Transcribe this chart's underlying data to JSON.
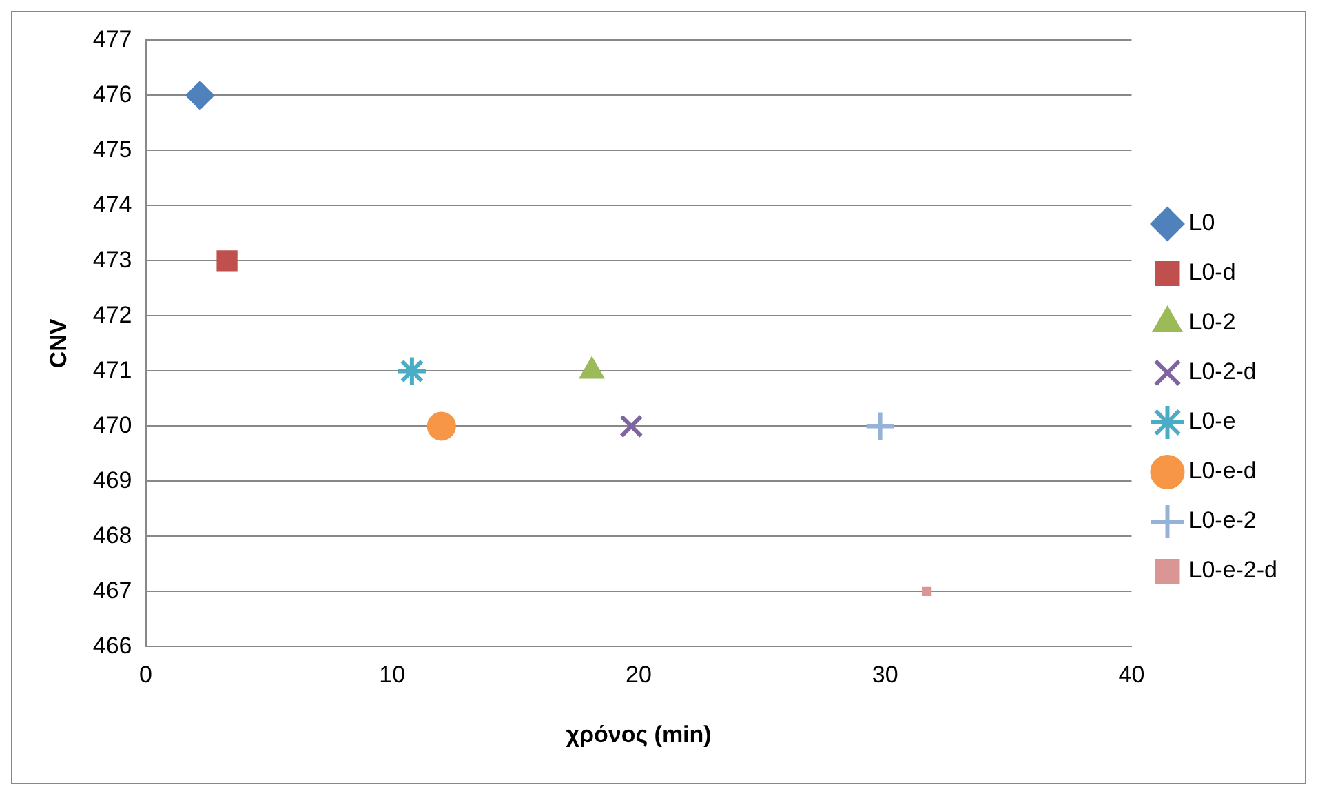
{
  "chart_data": {
    "type": "scatter",
    "xlabel": "χρόνος (min)",
    "ylabel": "CNV",
    "xlim": [
      0,
      40
    ],
    "xticks": [
      0,
      10,
      20,
      30,
      40
    ],
    "ylim": [
      466,
      477
    ],
    "yticks": [
      466,
      467,
      468,
      469,
      470,
      471,
      472,
      473,
      474,
      475,
      476,
      477
    ],
    "grid": "y",
    "legend": "right",
    "series": [
      {
        "name": "L0",
        "color": "#4f81bd",
        "marker": "diamond",
        "x": [
          2.2
        ],
        "values": [
          476
        ]
      },
      {
        "name": "L0-d",
        "color": "#c0504d",
        "marker": "square",
        "x": [
          3.3
        ],
        "values": [
          473
        ]
      },
      {
        "name": "L0-2",
        "color": "#9bbb59",
        "marker": "triangle",
        "x": [
          18.1
        ],
        "values": [
          471
        ]
      },
      {
        "name": "L0-2-d",
        "color": "#8064a2",
        "marker": "cross",
        "x": [
          19.7
        ],
        "values": [
          470
        ]
      },
      {
        "name": "L0-e",
        "color": "#4bacc6",
        "marker": "cross",
        "x": [
          10.8
        ],
        "values": [
          471
        ]
      },
      {
        "name": "L0-e-d",
        "color": "#f79646",
        "marker": "circle",
        "x": [
          12
        ],
        "values": [
          470
        ]
      },
      {
        "name": "L0-e-2",
        "color": "#95b3d7",
        "marker": "cross",
        "x": [
          29.8
        ],
        "values": [
          470
        ]
      },
      {
        "name": "L0-e-2-d",
        "color": "#d99694",
        "marker": "square",
        "x": [
          31.7
        ],
        "values": [
          467
        ]
      }
    ]
  }
}
